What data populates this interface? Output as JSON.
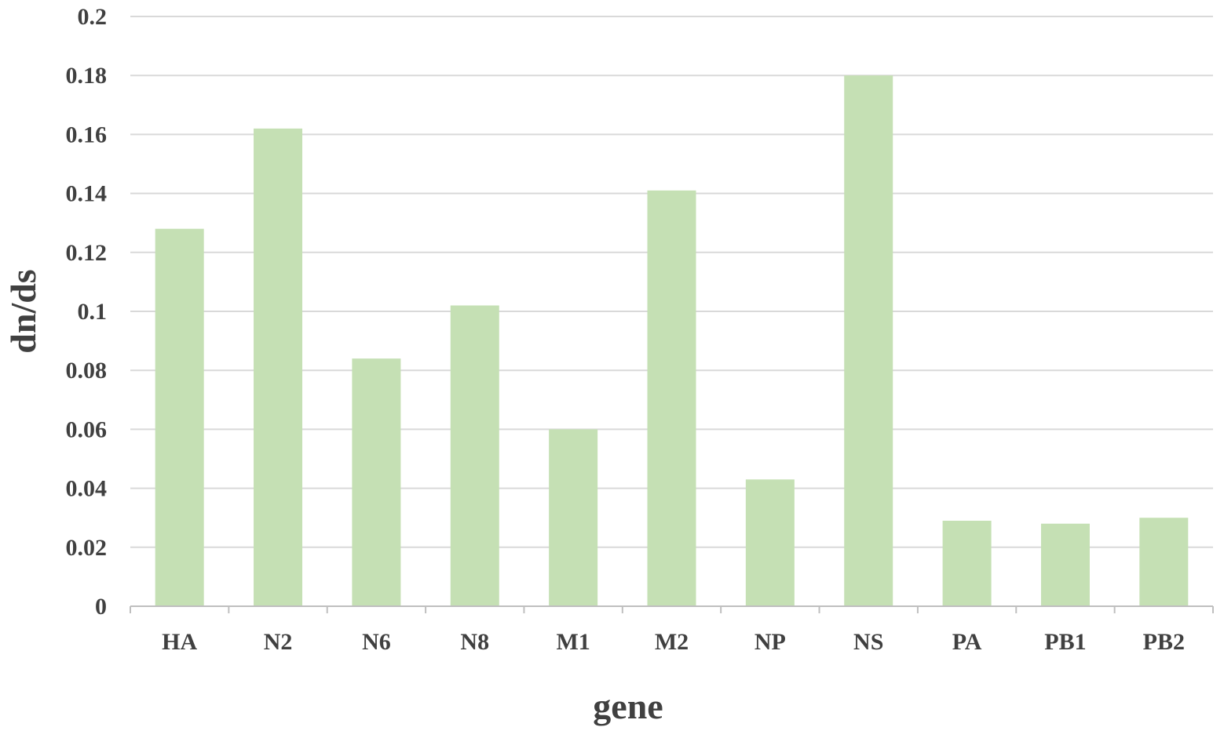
{
  "chart_data": {
    "type": "bar",
    "title": "",
    "xlabel": "gene",
    "ylabel": "dn/ds",
    "categories": [
      "HA",
      "N2",
      "N6",
      "N8",
      "M1",
      "M2",
      "NP",
      "NS",
      "PA",
      "PB1",
      "PB2"
    ],
    "values": [
      0.128,
      0.162,
      0.084,
      0.102,
      0.06,
      0.141,
      0.043,
      0.18,
      0.029,
      0.028,
      0.03
    ],
    "ylim": [
      0,
      0.2
    ],
    "yticks": [
      "0",
      "0.02",
      "0.04",
      "0.06",
      "0.08",
      "0.1",
      "0.12",
      "0.14",
      "0.16",
      "0.18",
      "0.2"
    ],
    "grid": true,
    "legend": "none",
    "colors": {
      "bar": "#c5e0b4",
      "grid": "#d9d9d9",
      "axis": "#bfbfbf",
      "text": "#404040"
    }
  }
}
